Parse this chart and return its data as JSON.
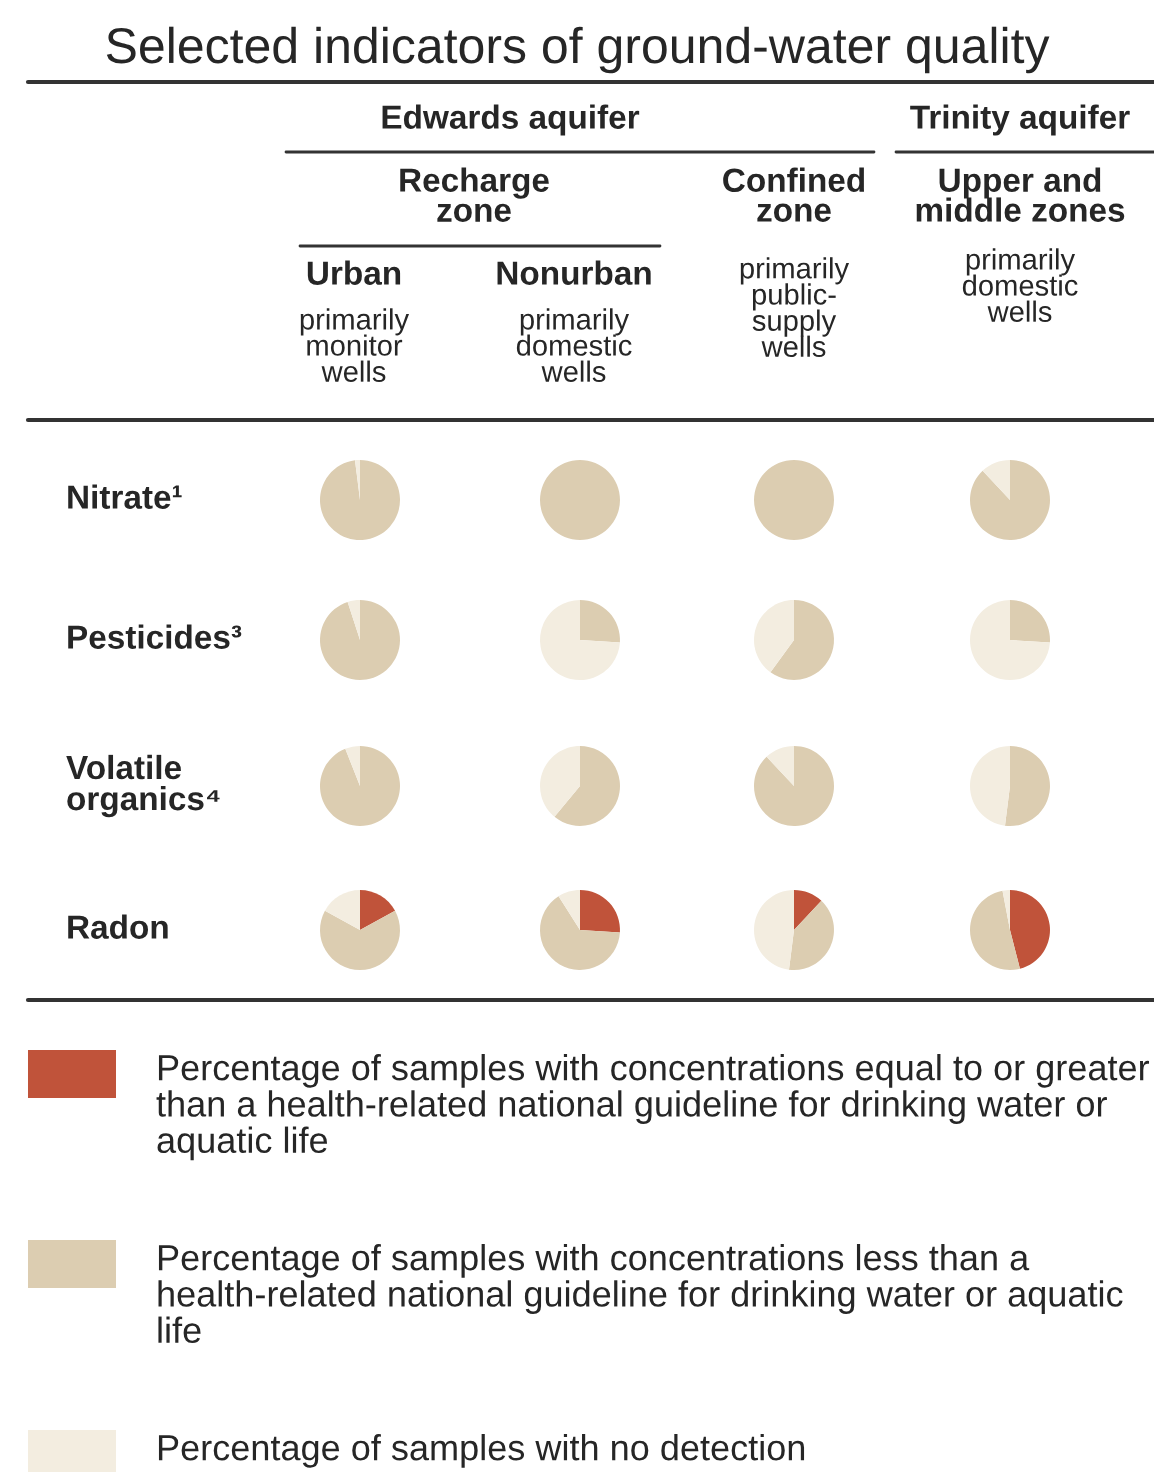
{
  "chart_data": [
    {
      "type": "pie",
      "legend": "bottom",
      "title": "Selected indicators of ground-water quality",
      "ylabel": "Nitrate¹",
      "annotations": [
        "Edwards aquifer",
        "Trinity aquifer",
        "Recharge\nzone",
        "Confined\nzone",
        "Upper and\nmiddle zones",
        "Urban",
        "primarily\nmonitor\nwells",
        "Nonurban",
        "primarily\ndomestic\nwells",
        "primarily\npublic-\nsupply\nwells",
        "primarily\ndomestic\nwells"
      ],
      "categories": [
        "Percentage of samples with concentrations equal to or greater than a health-related national guideline for drinking water or aquatic life",
        "Percentage of samples with concentrations less than a health-related national guideline for drinking water or aquatic life",
        "Percentage of samples with no detection"
      ],
      "values": [
        0,
        98,
        2
      ],
      "colors": [
        "#c0533a",
        "#dccdb1",
        "#f3ede0"
      ]
    },
    {
      "type": "pie",
      "values": [
        0,
        100,
        0
      ],
      "colors": [
        "#c0533a",
        "#dccdb1",
        "#f3ede0"
      ]
    },
    {
      "type": "pie",
      "values": [
        0,
        100,
        0
      ],
      "colors": [
        "#c0533a",
        "#dccdb1",
        "#f3ede0"
      ]
    },
    {
      "type": "pie",
      "values": [
        0,
        88,
        12
      ],
      "colors": [
        "#c0533a",
        "#dccdb1",
        "#f3ede0"
      ]
    },
    {
      "type": "pie",
      "ylabel": "Pesticides³",
      "values": [
        0,
        95,
        5
      ],
      "colors": [
        "#c0533a",
        "#dccdb1",
        "#f3ede0"
      ]
    },
    {
      "type": "pie",
      "values": [
        0,
        26,
        74
      ],
      "colors": [
        "#c0533a",
        "#dccdb1",
        "#f3ede0"
      ]
    },
    {
      "type": "pie",
      "values": [
        0,
        60,
        40
      ],
      "colors": [
        "#c0533a",
        "#dccdb1",
        "#f3ede0"
      ]
    },
    {
      "type": "pie",
      "values": [
        0,
        26,
        74
      ],
      "colors": [
        "#c0533a",
        "#dccdb1",
        "#f3ede0"
      ]
    },
    {
      "type": "pie",
      "ylabel": "Volatile\norganics⁴",
      "values": [
        0,
        94,
        6
      ],
      "colors": [
        "#c0533a",
        "#dccdb1",
        "#f3ede0"
      ]
    },
    {
      "type": "pie",
      "values": [
        0,
        61,
        39
      ],
      "colors": [
        "#c0533a",
        "#dccdb1",
        "#f3ede0"
      ]
    },
    {
      "type": "pie",
      "values": [
        0,
        88,
        12
      ],
      "colors": [
        "#c0533a",
        "#dccdb1",
        "#f3ede0"
      ]
    },
    {
      "type": "pie",
      "values": [
        0,
        52,
        48
      ],
      "colors": [
        "#c0533a",
        "#dccdb1",
        "#f3ede0"
      ]
    },
    {
      "type": "pie",
      "ylabel": "Radon",
      "values": [
        17,
        66,
        17
      ],
      "colors": [
        "#c0533a",
        "#dccdb1",
        "#f3ede0"
      ]
    },
    {
      "type": "pie",
      "values": [
        26,
        65,
        9
      ],
      "colors": [
        "#c0533a",
        "#dccdb1",
        "#f3ede0"
      ]
    },
    {
      "type": "pie",
      "values": [
        12,
        40,
        48
      ],
      "colors": [
        "#c0533a",
        "#dccdb1",
        "#f3ede0"
      ]
    },
    {
      "type": "pie",
      "values": [
        46,
        51,
        3
      ],
      "colors": [
        "#c0533a",
        "#dccdb1",
        "#f3ede0"
      ]
    }
  ]
}
